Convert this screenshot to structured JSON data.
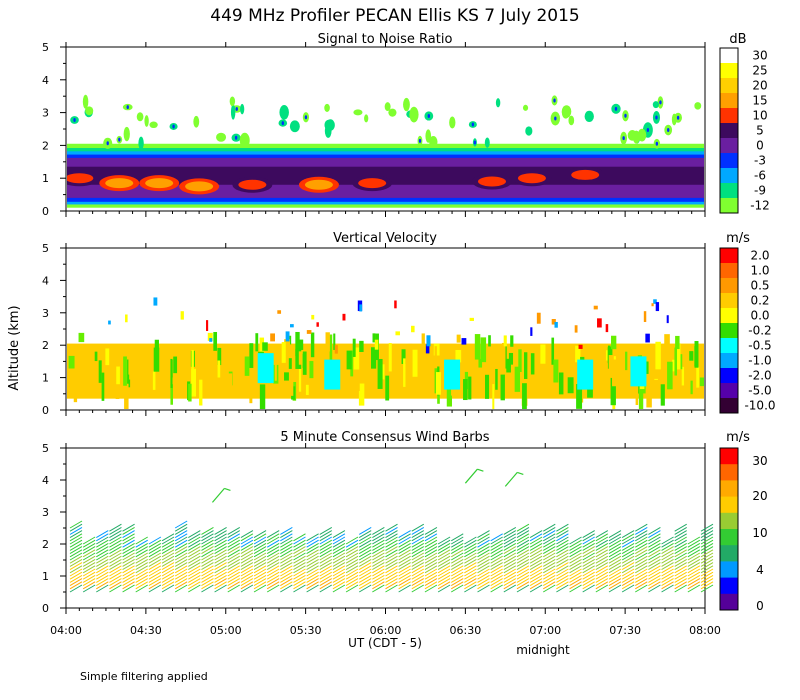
{
  "title": "449 MHz Profiler PECAN Ellis KS  7 July 2015",
  "ylabel": "Altitude (km)",
  "xlabel": "UT  (CDT - 5)",
  "midnight_label": "midnight",
  "footer": "Simple filtering applied",
  "chart_data": [
    {
      "type": "heatmap",
      "title": "Signal to Noise Ratio",
      "units": "dB",
      "x_range_ut": [
        "04:00",
        "08:00"
      ],
      "ylim": [
        0,
        5
      ],
      "yticks": [
        "0",
        "1",
        "2",
        "3",
        "4",
        "5"
      ],
      "colorbar": {
        "labels": [
          "30",
          "25",
          "20",
          "15",
          "10",
          "5",
          "0",
          "-3",
          "-6",
          "-9",
          "-12"
        ],
        "colors": [
          "#ffffff",
          "#ffff00",
          "#ffd000",
          "#ffa000",
          "#ff3300",
          "#3d0a5e",
          "#6a1fa0",
          "#0030ff",
          "#00a8ff",
          "#00e080",
          "#80ff30"
        ]
      },
      "layers": [
        {
          "alt_km": [
            0.2,
            0.4
          ],
          "value_dB": -3
        },
        {
          "alt_km": [
            0.4,
            1.8
          ],
          "value_dB": 5
        },
        {
          "alt_km": [
            0.7,
            1.3
          ],
          "value_dB": 12
        },
        {
          "alt_km": [
            1.8,
            2.0
          ],
          "value_dB": -8
        }
      ],
      "patches": [
        {
          "t": "04:05",
          "alt_km": 1.0,
          "value_dB": 12
        },
        {
          "t": "04:20",
          "alt_km": 0.85,
          "value_dB": 17
        },
        {
          "t": "04:35",
          "alt_km": 0.85,
          "value_dB": 15
        },
        {
          "t": "04:50",
          "alt_km": 0.75,
          "value_dB": 17
        },
        {
          "t": "05:10",
          "alt_km": 0.8,
          "value_dB": 12
        },
        {
          "t": "05:35",
          "alt_km": 0.8,
          "value_dB": 17
        },
        {
          "t": "05:55",
          "alt_km": 0.85,
          "value_dB": 12
        },
        {
          "t": "06:40",
          "alt_km": 0.9,
          "value_dB": 12
        },
        {
          "t": "06:55",
          "alt_km": 1.0,
          "value_dB": 12
        },
        {
          "t": "07:15",
          "alt_km": 1.1,
          "value_dB": 12
        }
      ]
    },
    {
      "type": "heatmap",
      "title": "Vertical Velocity",
      "units": "m/s",
      "x_range_ut": [
        "04:00",
        "08:00"
      ],
      "ylim": [
        0,
        5
      ],
      "yticks": [
        "0",
        "1",
        "2",
        "3",
        "4",
        "5"
      ],
      "colorbar": {
        "labels": [
          "2.0",
          "1.0",
          "0.5",
          "0.2",
          "0.0",
          "-0.2",
          "-0.5",
          "-1.0",
          "-2.0",
          "-5.0",
          "-10.0"
        ],
        "colors": [
          "#ff0000",
          "#ff6600",
          "#ff9900",
          "#ffcc00",
          "#ffff00",
          "#33dd00",
          "#00ffff",
          "#00aaff",
          "#0000ff",
          "#5500aa",
          "#330033"
        ]
      },
      "layers": [
        {
          "alt_km": [
            0.35,
            2.05
          ],
          "t_start": "04:00",
          "t_end": "08:00",
          "dominant_m_s": [
            0.2,
            -0.2
          ]
        }
      ],
      "patches": [
        {
          "t": "05:15",
          "alt_km": 1.2,
          "value_m_s": -0.5
        },
        {
          "t": "05:40",
          "alt_km": 1.0,
          "value_m_s": -0.5
        },
        {
          "t": "06:25",
          "alt_km": 1.0,
          "value_m_s": -0.5
        },
        {
          "t": "07:15",
          "alt_km": 1.0,
          "value_m_s": -0.5
        },
        {
          "t": "07:35",
          "alt_km": 1.1,
          "value_m_s": -0.5
        }
      ]
    },
    {
      "type": "scatter",
      "subtype": "wind_barbs",
      "title": "5 Minute Consensus Wind Barbs",
      "units": "m/s",
      "x_range_ut": [
        "04:00",
        "08:00"
      ],
      "ylim": [
        0,
        5
      ],
      "yticks": [
        "0",
        "1",
        "2",
        "3",
        "4",
        "5"
      ],
      "xticks": [
        "04:00",
        "04:30",
        "05:00",
        "05:30",
        "06:00",
        "06:30",
        "07:00",
        "07:30",
        "08:00"
      ],
      "colorbar": {
        "labels": [
          "30",
          "20",
          "10",
          "4",
          "0"
        ],
        "colors": [
          "#ff0000",
          "#ff6600",
          "#ffaa00",
          "#ffcc00",
          "#99cc33",
          "#33cc33",
          "#22aa66",
          "#0099ff",
          "#0000ff",
          "#550099"
        ]
      },
      "speed_profile": [
        {
          "alt_km": 0.6,
          "speed_m_s": 16
        },
        {
          "alt_km": 1.0,
          "speed_m_s": 14
        },
        {
          "alt_km": 1.4,
          "speed_m_s": 11
        },
        {
          "alt_km": 1.8,
          "speed_m_s": 9
        },
        {
          "alt_km": 2.2,
          "speed_m_s": 7
        },
        {
          "alt_km": 2.5,
          "speed_m_s": 8
        }
      ],
      "wind_dir": "southwest",
      "isolated": [
        {
          "t": "04:55",
          "alt_km": 3.3,
          "speed_m_s": 9
        },
        {
          "t": "06:30",
          "alt_km": 3.9,
          "speed_m_s": 8
        },
        {
          "t": "06:45",
          "alt_km": 3.8,
          "speed_m_s": 8
        }
      ]
    }
  ]
}
